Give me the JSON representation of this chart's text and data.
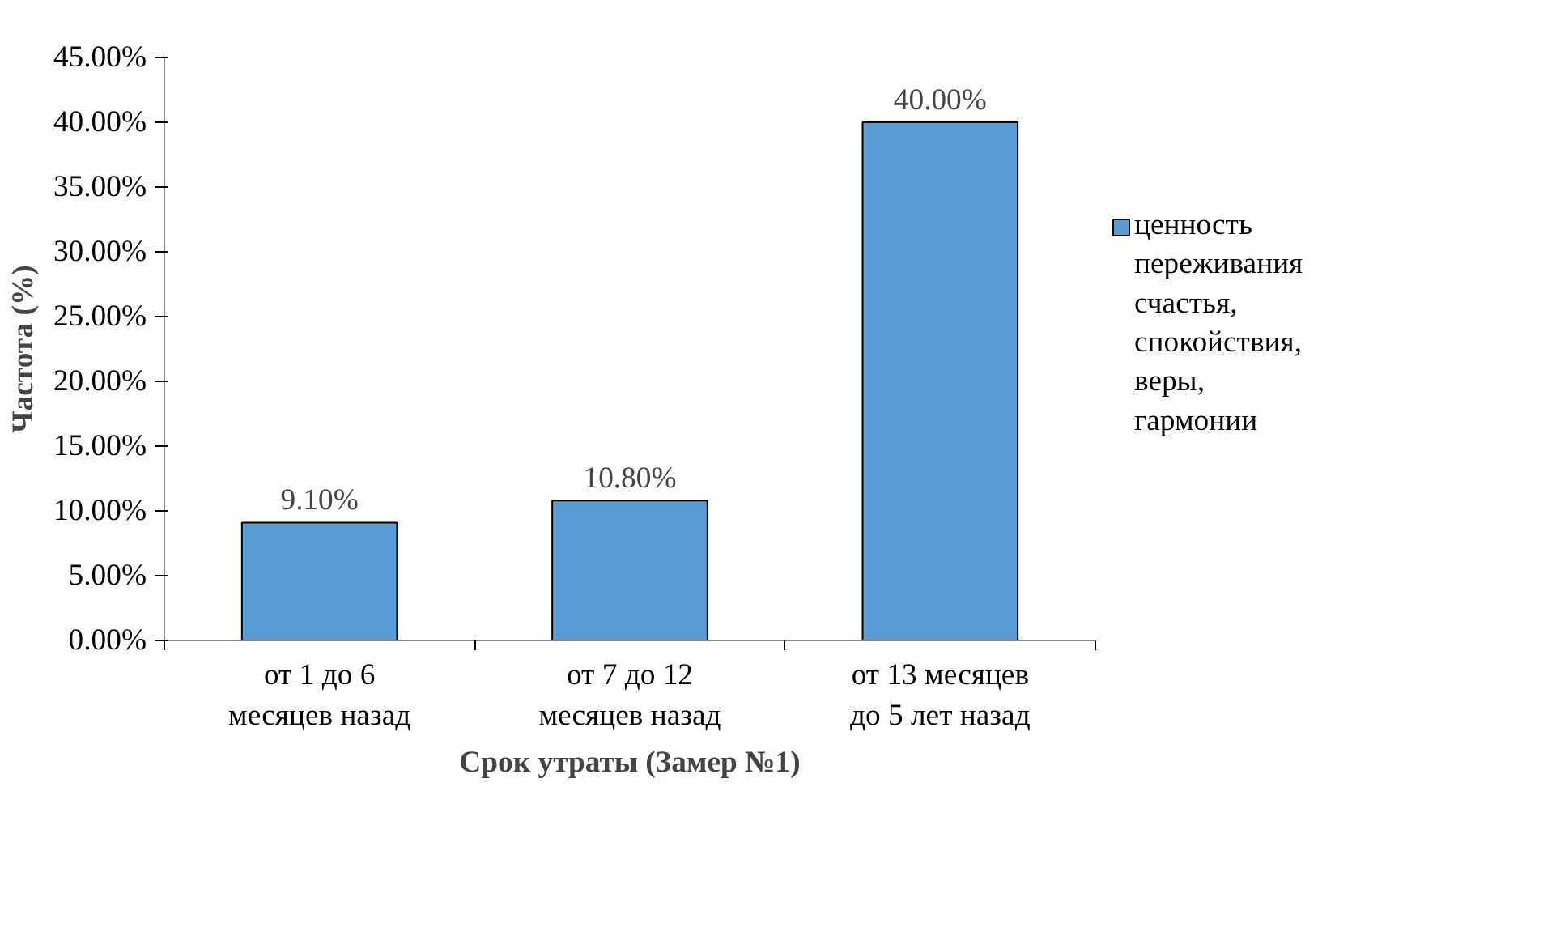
{
  "chart_data": {
    "type": "bar",
    "xlabel": "Срок утраты (Замер №1)",
    "ylabel": "Частота (%)",
    "categories": [
      "от 1 до 6\nмесяцев назад",
      "от 7 до 12\nмесяцев назад",
      "от 13 месяцев\nдо 5 лет назад"
    ],
    "series": [
      {
        "name": "ценность переживания счастья, спокойствия, веры, гармонии",
        "color": "#5b9bd5",
        "values": [
          9.1,
          10.8,
          40.0
        ],
        "value_labels": [
          "9.10%",
          "10.80%",
          "40.00%"
        ]
      }
    ],
    "ylim": [
      0,
      45
    ],
    "yticks": [
      {
        "value": 0,
        "label": "0.00%"
      },
      {
        "value": 5,
        "label": "5.00%"
      },
      {
        "value": 10,
        "label": "10.00%"
      },
      {
        "value": 15,
        "label": "15.00%"
      },
      {
        "value": 20,
        "label": "20.00%"
      },
      {
        "value": 25,
        "label": "25.00%"
      },
      {
        "value": 30,
        "label": "30.00%"
      },
      {
        "value": 35,
        "label": "35.00%"
      },
      {
        "value": 40,
        "label": "40.00%"
      },
      {
        "value": 45,
        "label": "45.00%"
      }
    ],
    "grid": false,
    "legend": "right"
  }
}
